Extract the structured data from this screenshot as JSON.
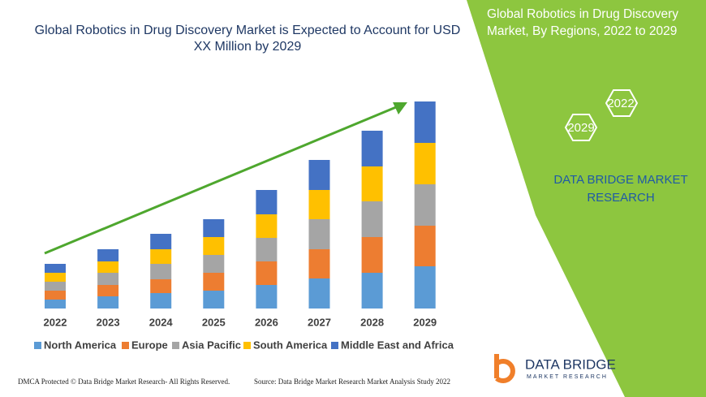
{
  "chart_data": {
    "type": "bar",
    "stacked": true,
    "title": "Global Robotics in Drug Discovery Market is Expected to Account for USD XX Million by 2029",
    "categories": [
      "2022",
      "2023",
      "2024",
      "2025",
      "2026",
      "2027",
      "2028",
      "2029"
    ],
    "series": [
      {
        "name": "North America",
        "color": "#5b9bd5",
        "values": [
          11,
          15,
          19,
          22,
          29,
          37,
          44,
          52
        ]
      },
      {
        "name": "Europe",
        "color": "#ed7d31",
        "values": [
          11,
          14,
          17,
          22,
          29,
          36,
          44,
          50
        ]
      },
      {
        "name": "Asia Pacific",
        "color": "#a5a5a5",
        "values": [
          11,
          15,
          19,
          22,
          29,
          37,
          44,
          51
        ]
      },
      {
        "name": "South America",
        "color": "#ffc000",
        "values": [
          11,
          14,
          18,
          22,
          29,
          36,
          43,
          51
        ]
      },
      {
        "name": "Middle East and Africa",
        "color": "#4472c4",
        "values": [
          11,
          15,
          19,
          22,
          30,
          37,
          44,
          51
        ]
      }
    ]
  },
  "panel": {
    "title": "Global Robotics in Drug Discovery Market, By Regions, 2022 to 2029",
    "hexagons": [
      "2022",
      "2029"
    ],
    "brand": "DATA BRIDGE MARKET RESEARCH"
  },
  "logo": {
    "name": "DATA BRIDGE",
    "tagline": "MARKET RESEARCH"
  },
  "footer": {
    "left": "DMCA Protected © Data Bridge Market Research- All Rights Reserved.",
    "right": "Source: Data Bridge Market Research Market Analysis Study 2022"
  }
}
